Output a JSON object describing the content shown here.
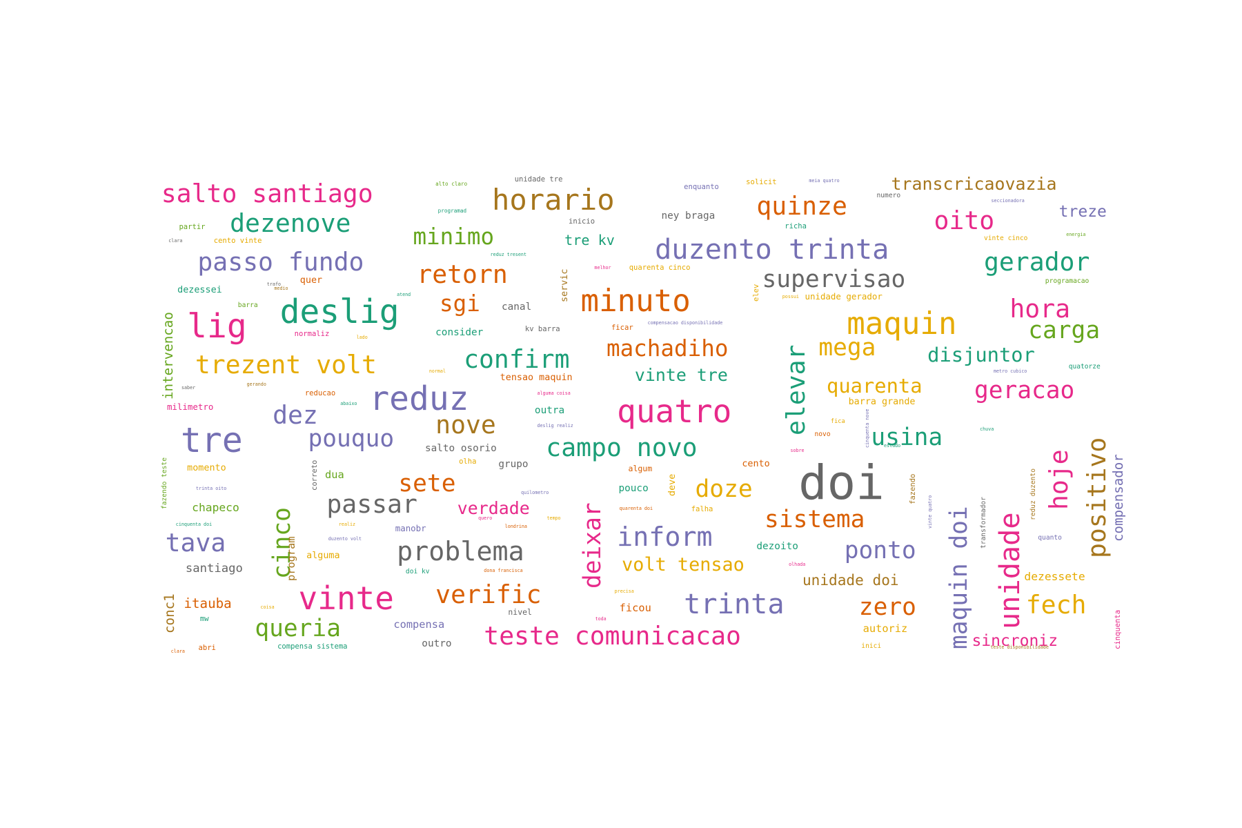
{
  "palette": {
    "pink": "#e7298a",
    "green": "#1b9e77",
    "purple": "#7570b3",
    "orange": "#d95f02",
    "gold": "#e6ab02",
    "brown": "#a6761d",
    "gray": "#666666",
    "lime": "#66a61e"
  },
  "words": [
    {
      "text": "salto santiago",
      "color": "pink"
    },
    {
      "text": "horario",
      "color": "brown"
    },
    {
      "text": "quinze",
      "color": "orange"
    },
    {
      "text": "transcricaovazia",
      "color": "brown"
    },
    {
      "text": "dezenove",
      "color": "green"
    },
    {
      "text": "oito",
      "color": "pink"
    },
    {
      "text": "treze",
      "color": "purple"
    },
    {
      "text": "minimo",
      "color": "lime"
    },
    {
      "text": "duzento trinta",
      "color": "purple"
    },
    {
      "text": "gerador",
      "color": "green"
    },
    {
      "text": "passo fundo",
      "color": "purple"
    },
    {
      "text": "retorn",
      "color": "orange"
    },
    {
      "text": "supervisao",
      "color": "gray"
    },
    {
      "text": "minuto",
      "color": "orange"
    },
    {
      "text": "hora",
      "color": "pink"
    },
    {
      "text": "deslig",
      "color": "green"
    },
    {
      "text": "lig",
      "color": "pink"
    },
    {
      "text": "sgi",
      "color": "orange"
    },
    {
      "text": "maquin",
      "color": "gold"
    },
    {
      "text": "carga",
      "color": "lime"
    },
    {
      "text": "mega",
      "color": "gold"
    },
    {
      "text": "machadiho",
      "color": "orange"
    },
    {
      "text": "disjuntor",
      "color": "green"
    },
    {
      "text": "confirm",
      "color": "green"
    },
    {
      "text": "trezent volt",
      "color": "gold"
    },
    {
      "text": "vinte tre",
      "color": "green"
    },
    {
      "text": "quarenta",
      "color": "gold"
    },
    {
      "text": "geracao",
      "color": "pink"
    },
    {
      "text": "reduz",
      "color": "purple"
    },
    {
      "text": "quatro",
      "color": "pink"
    },
    {
      "text": "elevar",
      "color": "green"
    },
    {
      "text": "dez",
      "color": "purple"
    },
    {
      "text": "nove",
      "color": "brown"
    },
    {
      "text": "tre",
      "color": "purple"
    },
    {
      "text": "pouquo",
      "color": "purple"
    },
    {
      "text": "campo novo",
      "color": "green"
    },
    {
      "text": "usina",
      "color": "green"
    },
    {
      "text": "positivo",
      "color": "brown"
    },
    {
      "text": "hoje",
      "color": "pink"
    },
    {
      "text": "compensador",
      "color": "purple"
    },
    {
      "text": "doi",
      "color": "gray"
    },
    {
      "text": "sete",
      "color": "orange"
    },
    {
      "text": "doze",
      "color": "gold"
    },
    {
      "text": "unidade",
      "color": "pink"
    },
    {
      "text": "cinco",
      "color": "lime"
    },
    {
      "text": "passar",
      "color": "gray"
    },
    {
      "text": "verdade",
      "color": "pink"
    },
    {
      "text": "deixar",
      "color": "pink"
    },
    {
      "text": "sistema",
      "color": "orange"
    },
    {
      "text": "maquin doi",
      "color": "purple"
    },
    {
      "text": "tava",
      "color": "purple"
    },
    {
      "text": "inform",
      "color": "purple"
    },
    {
      "text": "problema",
      "color": "gray"
    },
    {
      "text": "ponto",
      "color": "purple"
    },
    {
      "text": "volt tensao",
      "color": "gold"
    },
    {
      "text": "vinte",
      "color": "pink"
    },
    {
      "text": "verific",
      "color": "orange"
    },
    {
      "text": "trinta",
      "color": "purple"
    },
    {
      "text": "zero",
      "color": "orange"
    },
    {
      "text": "fech",
      "color": "gold"
    },
    {
      "text": "queria",
      "color": "lime"
    },
    {
      "text": "teste comunicacao",
      "color": "pink"
    },
    {
      "text": "sincroniz",
      "color": "pink"
    },
    {
      "text": "intervencao",
      "color": "lime"
    },
    {
      "text": "conc1",
      "color": "brown"
    },
    {
      "text": "itauba",
      "color": "orange"
    },
    {
      "text": "santiago",
      "color": "gray"
    },
    {
      "text": "chapeco",
      "color": "lime"
    },
    {
      "text": "program",
      "color": "brown"
    },
    {
      "text": "unidade doi",
      "color": "brown"
    },
    {
      "text": "dezessete",
      "color": "gold"
    },
    {
      "text": "dezoito",
      "color": "green"
    },
    {
      "text": "autoriz",
      "color": "gold"
    },
    {
      "text": "compensa",
      "color": "purple"
    },
    {
      "text": "outro",
      "color": "gray"
    },
    {
      "text": "nivel",
      "color": "gray"
    },
    {
      "text": "ficou",
      "color": "orange"
    },
    {
      "text": "manobr",
      "color": "purple"
    },
    {
      "text": "dua",
      "color": "lime"
    },
    {
      "text": "momento",
      "color": "gold"
    },
    {
      "text": "alguma",
      "color": "gold"
    },
    {
      "text": "outra",
      "color": "green"
    },
    {
      "text": "salto osorio",
      "color": "gray"
    },
    {
      "text": "grupo",
      "color": "gray"
    },
    {
      "text": "olha",
      "color": "gold"
    },
    {
      "text": "pouco",
      "color": "green"
    },
    {
      "text": "cento",
      "color": "orange"
    },
    {
      "text": "algum",
      "color": "orange"
    },
    {
      "text": "deve",
      "color": "gold"
    },
    {
      "text": "falha",
      "color": "gold"
    },
    {
      "text": "milimetro",
      "color": "pink"
    },
    {
      "text": "barra grande",
      "color": "gold"
    },
    {
      "text": "tensao maquin",
      "color": "orange"
    },
    {
      "text": "reducao",
      "color": "orange"
    },
    {
      "text": "consider",
      "color": "green"
    },
    {
      "text": "kv barra",
      "color": "gray"
    },
    {
      "text": "ficar",
      "color": "orange"
    },
    {
      "text": "normaliz",
      "color": "pink"
    },
    {
      "text": "canal",
      "color": "gray"
    },
    {
      "text": "servic",
      "color": "brown"
    },
    {
      "text": "unidade gerador",
      "color": "gold"
    },
    {
      "text": "quarenta cinco",
      "color": "gold"
    },
    {
      "text": "dezessei",
      "color": "green"
    },
    {
      "text": "quer",
      "color": "orange"
    },
    {
      "text": "tre kv",
      "color": "green"
    },
    {
      "text": "ney braga",
      "color": "gray"
    },
    {
      "text": "richa",
      "color": "green"
    },
    {
      "text": "inicio",
      "color": "gray"
    },
    {
      "text": "partir",
      "color": "lime"
    },
    {
      "text": "cento vinte",
      "color": "gold"
    },
    {
      "text": "unidade tre",
      "color": "gray"
    },
    {
      "text": "enquanto",
      "color": "purple"
    },
    {
      "text": "solicit",
      "color": "gold"
    },
    {
      "text": "numero",
      "color": "gray"
    },
    {
      "text": "vinte cinco",
      "color": "gold"
    },
    {
      "text": "programacao",
      "color": "lime"
    },
    {
      "text": "quatorze",
      "color": "green"
    },
    {
      "text": "fica",
      "color": "gold"
    },
    {
      "text": "novo",
      "color": "orange"
    },
    {
      "text": "elev",
      "color": "gold"
    },
    {
      "text": "barra",
      "color": "lime"
    },
    {
      "text": "correto",
      "color": "gray"
    },
    {
      "text": "abri",
      "color": "orange"
    },
    {
      "text": "compensa sistema",
      "color": "green"
    },
    {
      "text": "doi kv",
      "color": "green"
    },
    {
      "text": "inici",
      "color": "gold"
    },
    {
      "text": "cinquenta",
      "color": "pink"
    },
    {
      "text": "quanto",
      "color": "purple"
    },
    {
      "text": "transformador",
      "color": "gray"
    },
    {
      "text": "reduz duzento",
      "color": "brown"
    },
    {
      "text": "fazendo",
      "color": "brown"
    },
    {
      "text": "fazendo teste",
      "color": "lime"
    },
    {
      "text": "mw",
      "color": "green"
    },
    {
      "text": "alto claro",
      "color": "lime"
    },
    {
      "text": "programad",
      "color": "green"
    },
    {
      "text": "meia quatro",
      "color": "purple"
    },
    {
      "text": "seccionadora",
      "color": "purple"
    },
    {
      "text": "energia",
      "color": "lime"
    },
    {
      "text": "reduz tresent",
      "color": "green"
    },
    {
      "text": "melhor",
      "color": "pink"
    },
    {
      "text": "trafo",
      "color": "gray"
    },
    {
      "text": "atend",
      "color": "green"
    },
    {
      "text": "possui",
      "color": "gold"
    },
    {
      "text": "compensacao disponibilidade",
      "color": "purple"
    },
    {
      "text": "metro cubico",
      "color": "purple"
    },
    {
      "text": "chuva",
      "color": "green"
    },
    {
      "text": "lado",
      "color": "gold"
    },
    {
      "text": "normal",
      "color": "gold"
    },
    {
      "text": "gerando",
      "color": "brown"
    },
    {
      "text": "cinquenta nove",
      "color": "purple"
    },
    {
      "text": "alguma coisa",
      "color": "pink"
    },
    {
      "text": "deslig realiz",
      "color": "purple"
    },
    {
      "text": "sobre",
      "color": "pink"
    },
    {
      "text": "estudo",
      "color": "green"
    },
    {
      "text": "abaixo",
      "color": "green"
    },
    {
      "text": "quarenta doi",
      "color": "orange"
    },
    {
      "text": "teste disponibilidade",
      "color": "brown"
    },
    {
      "text": "cinquenta doi",
      "color": "green"
    },
    {
      "text": "londrina",
      "color": "orange"
    },
    {
      "text": "quero",
      "color": "pink"
    },
    {
      "text": "dona francisca",
      "color": "orange"
    },
    {
      "text": "realiz",
      "color": "gold"
    },
    {
      "text": "duzento volt",
      "color": "purple"
    },
    {
      "text": "quilometro",
      "color": "purple"
    },
    {
      "text": "trinta oito",
      "color": "purple"
    },
    {
      "text": "olhada",
      "color": "pink"
    },
    {
      "text": "tempo",
      "color": "gold"
    },
    {
      "text": "precisa",
      "color": "gold"
    },
    {
      "text": "toda",
      "color": "pink"
    },
    {
      "text": "coisa",
      "color": "gold"
    },
    {
      "text": "clara",
      "color": "orange"
    },
    {
      "text": "vinte quatro",
      "color": "purple"
    },
    {
      "text": "clara",
      "color": "gray"
    },
    {
      "text": "medio",
      "color": "brown"
    },
    {
      "text": "saber",
      "color": "gray"
    },
    {
      "text": "catorze",
      "color": "gray"
    }
  ]
}
